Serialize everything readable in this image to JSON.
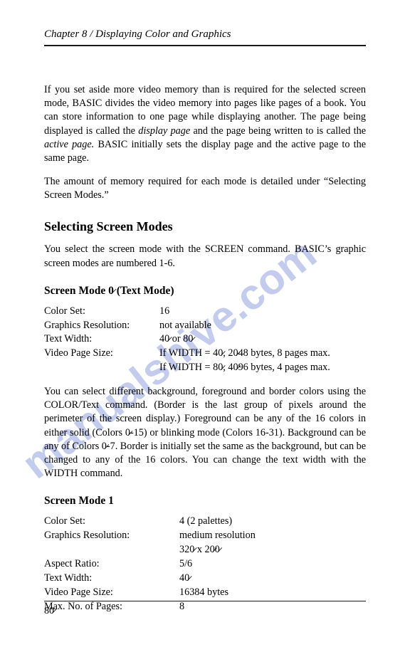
{
  "chapter_header": "Chapter 8 / Displaying Color and Graphics",
  "para1_a": "If you set aside more video memory than is required for the selected screen mode, BASIC divides the video memory into pages like pages of a book. You can store information to one page while displaying another. The page being displayed is called the ",
  "para1_i1": "display page",
  "para1_b": " and the page being written to is called the ",
  "para1_i2": "active page.",
  "para1_c": " BASIC initially sets the display page and the active page to the same page.",
  "para2": "The amount of memory required for each mode is detailed under “Selecting Screen Modes.”",
  "h2_1": "Selecting Screen Modes",
  "para3": "You select the screen mode with the SCREEN command. BASIC’s graphic screen modes are numbered 1-6.",
  "h3_1": "Screen Mode 0̷ (Text Mode)",
  "mode0": {
    "labels": [
      "Color Set:",
      "Graphics Resolution:",
      "Text Width:",
      "Video Page Size:"
    ],
    "values": [
      "16",
      "not available",
      "40̷ or 80̷",
      "If WIDTH = 40̷, 20̷48 bytes, 8 pages max.",
      "If WIDTH = 80̷, 40̷96 bytes, 4 pages max."
    ]
  },
  "para4": "You can select different background, foreground and border colors using the COLOR/Text command. (Border is the last group of pixels around the perimeter of the screen display.) Foreground can be any of the 16 colors in either solid (Colors 0̷-15) or blinking mode (Colors 16-31). Background can be any of Colors 0̷-7. Border is initially set the same as the background, but can be changed to any of the 16 colors. You can change the text width with the WIDTH command.",
  "h3_2": "Screen Mode 1",
  "mode1": {
    "labels": [
      "Color Set:",
      "Graphics Resolution:",
      "",
      "Aspect Ratio:",
      "Text Width:",
      "Video Page Size:",
      "Max. No. of Pages:"
    ],
    "values": [
      "4 (2 palettes)",
      "medium resolution",
      "320̷ x 20̷0̷",
      "5/6",
      "40̷",
      "16384 bytes",
      "8"
    ]
  },
  "page_number": "80̷",
  "watermark": {
    "text": "manualshive.com",
    "color": "#b9c4ea",
    "fontsize": 60,
    "angle": -38
  }
}
